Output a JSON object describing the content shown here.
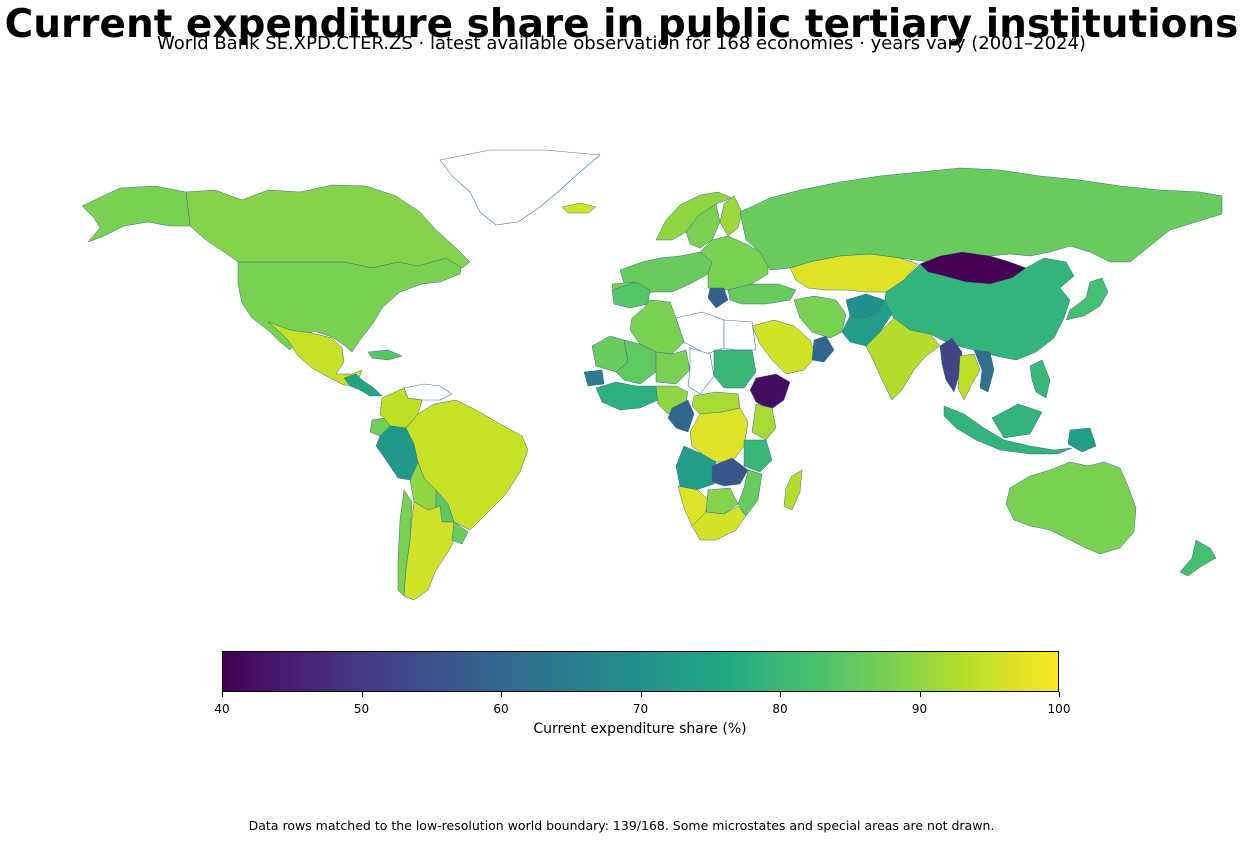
{
  "title": "Current expenditure share in public tertiary institutions",
  "subtitle": "World Bank SE.XPD.CTER.ZS · latest available observation for 168 economies · years vary (2001–2024)",
  "colorbar": {
    "label": "Current expenditure share (%)",
    "min": 40,
    "max": 100,
    "ticks": [
      "40",
      "50",
      "60",
      "70",
      "80",
      "90",
      "100"
    ],
    "colormap": "viridis",
    "stops": [
      "#440154",
      "#482475",
      "#414487",
      "#355f8d",
      "#2a788e",
      "#21918c",
      "#22a884",
      "#44bf70",
      "#7ad151",
      "#bddf26",
      "#fde725"
    ]
  },
  "no_data_style": {
    "fill": "#ffffff",
    "stroke": "#3b75af"
  },
  "footnote": "Data rows matched to the low-resolution world boundary: 139/168. Some microstates and special areas are not drawn.",
  "regions": [
    {
      "name": "United States",
      "value": 88
    },
    {
      "name": "Canada",
      "value": 89
    },
    {
      "name": "Alaska",
      "value": 88
    },
    {
      "name": "Mexico",
      "value": 95
    },
    {
      "name": "Guatemala",
      "value": 75
    },
    {
      "name": "Cuba",
      "value": 84
    },
    {
      "name": "Colombia",
      "value": 94
    },
    {
      "name": "Venezuela",
      "value": 0
    },
    {
      "name": "Peru",
      "value": 72
    },
    {
      "name": "Ecuador",
      "value": 87
    },
    {
      "name": "Brazil",
      "value": 95
    },
    {
      "name": "Bolivia",
      "value": 90
    },
    {
      "name": "Paraguay",
      "value": 85
    },
    {
      "name": "Chile",
      "value": 88
    },
    {
      "name": "Argentina",
      "value": 96
    },
    {
      "name": "Uruguay",
      "value": 86
    },
    {
      "name": "Greenland",
      "value": 0
    },
    {
      "name": "Iceland",
      "value": 96
    },
    {
      "name": "Norway",
      "value": 90
    },
    {
      "name": "Sweden",
      "value": 88
    },
    {
      "name": "Finland",
      "value": 91
    },
    {
      "name": "Europe West",
      "value": 86
    },
    {
      "name": "Europe East",
      "value": 88
    },
    {
      "name": "Spain",
      "value": 88
    },
    {
      "name": "Greece",
      "value": 58
    },
    {
      "name": "Turkey",
      "value": 86
    },
    {
      "name": "Russia",
      "value": 86
    },
    {
      "name": "Kazakhstan",
      "value": 97
    },
    {
      "name": "Mongolia",
      "value": 40
    },
    {
      "name": "China",
      "value": 79
    },
    {
      "name": "Iran",
      "value": 88
    },
    {
      "name": "Afghanistan",
      "value": 70
    },
    {
      "name": "Pakistan",
      "value": 73
    },
    {
      "name": "India",
      "value": 93
    },
    {
      "name": "Saudi Arabia",
      "value": 96
    },
    {
      "name": "Oman",
      "value": 60
    },
    {
      "name": "Myanmar",
      "value": 52
    },
    {
      "name": "Thailand",
      "value": 94
    },
    {
      "name": "Vietnam",
      "value": 62
    },
    {
      "name": "Indonesia",
      "value": 79
    },
    {
      "name": "Papua New Guinea",
      "value": 74
    },
    {
      "name": "Philippines",
      "value": 80
    },
    {
      "name": "Japan",
      "value": 82
    },
    {
      "name": "Australia",
      "value": 88
    },
    {
      "name": "New Zealand",
      "value": 82
    },
    {
      "name": "Morocco",
      "value": 84
    },
    {
      "name": "Algeria",
      "value": 88
    },
    {
      "name": "Libya",
      "value": 0
    },
    {
      "name": "Egypt",
      "value": 0
    },
    {
      "name": "Mauritania",
      "value": 86
    },
    {
      "name": "Mali",
      "value": 85
    },
    {
      "name": "Niger",
      "value": 88
    },
    {
      "name": "Chad",
      "value": 0
    },
    {
      "name": "Sudan",
      "value": 80
    },
    {
      "name": "Ethiopia",
      "value": 42
    },
    {
      "name": "Senegal",
      "value": 65
    },
    {
      "name": "West Africa coast",
      "value": 78
    },
    {
      "name": "Nigeria",
      "value": 90
    },
    {
      "name": "Cameroon",
      "value": 60
    },
    {
      "name": "Central African Republic",
      "value": 92
    },
    {
      "name": "DR Congo",
      "value": 97
    },
    {
      "name": "Kenya",
      "value": 92
    },
    {
      "name": "Angola",
      "value": 73
    },
    {
      "name": "Zambia",
      "value": 56
    },
    {
      "name": "Tanzania",
      "value": 80
    },
    {
      "name": "Mozambique",
      "value": 86
    },
    {
      "name": "Namibia",
      "value": 97
    },
    {
      "name": "Botswana",
      "value": 89
    },
    {
      "name": "South Africa",
      "value": 96
    },
    {
      "name": "Madagascar",
      "value": 93
    }
  ]
}
